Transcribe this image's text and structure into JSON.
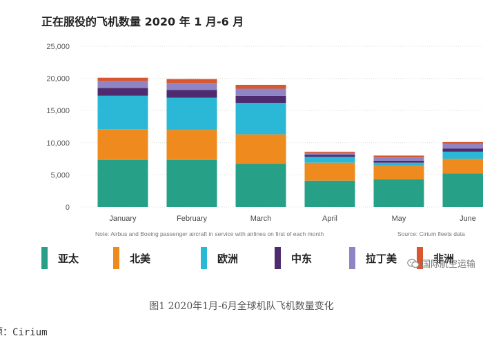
{
  "chart_data": {
    "type": "stacked-bar",
    "title": "正在服役的飞机数量 2020 年 1 月-6 月",
    "categories": [
      "January",
      "February",
      "March",
      "April",
      "May",
      "June"
    ],
    "ylim": [
      0,
      25000
    ],
    "yticks": [
      0,
      5000,
      10000,
      15000,
      20000,
      25000
    ],
    "ytick_labels": [
      "0",
      "5,000",
      "10,000",
      "15,000",
      "20,000",
      "25,000"
    ],
    "grid": true,
    "series": [
      {
        "name": "亚太",
        "color": "#26a087",
        "values": [
          7300,
          7300,
          6700,
          4100,
          4300,
          5200
        ]
      },
      {
        "name": "北美",
        "color": "#ef8a1e",
        "values": [
          4800,
          4700,
          4600,
          2800,
          2100,
          2300
        ]
      },
      {
        "name": "欧洲",
        "color": "#2bb8d6",
        "values": [
          5200,
          5000,
          4900,
          900,
          500,
          1100
        ]
      },
      {
        "name": "中东",
        "color": "#4e2b6e",
        "values": [
          1200,
          1200,
          1100,
          300,
          300,
          500
        ]
      },
      {
        "name": "拉丁美",
        "color": "#8f84c4",
        "values": [
          1100,
          1100,
          1100,
          300,
          500,
          700
        ]
      },
      {
        "name": "非洲",
        "color": "#d9572e",
        "values": [
          500,
          600,
          600,
          200,
          300,
          300
        ]
      }
    ],
    "note": "Note: Airbus and Boeing passenger aircraft in service with airlines on first of each month",
    "source_note": "Source: Cirium fleets data"
  },
  "watermark": "国际航空运输",
  "caption": "图1      2020年1月-6月全球机队飞机数量变化",
  "source_line": "源：Cirium"
}
